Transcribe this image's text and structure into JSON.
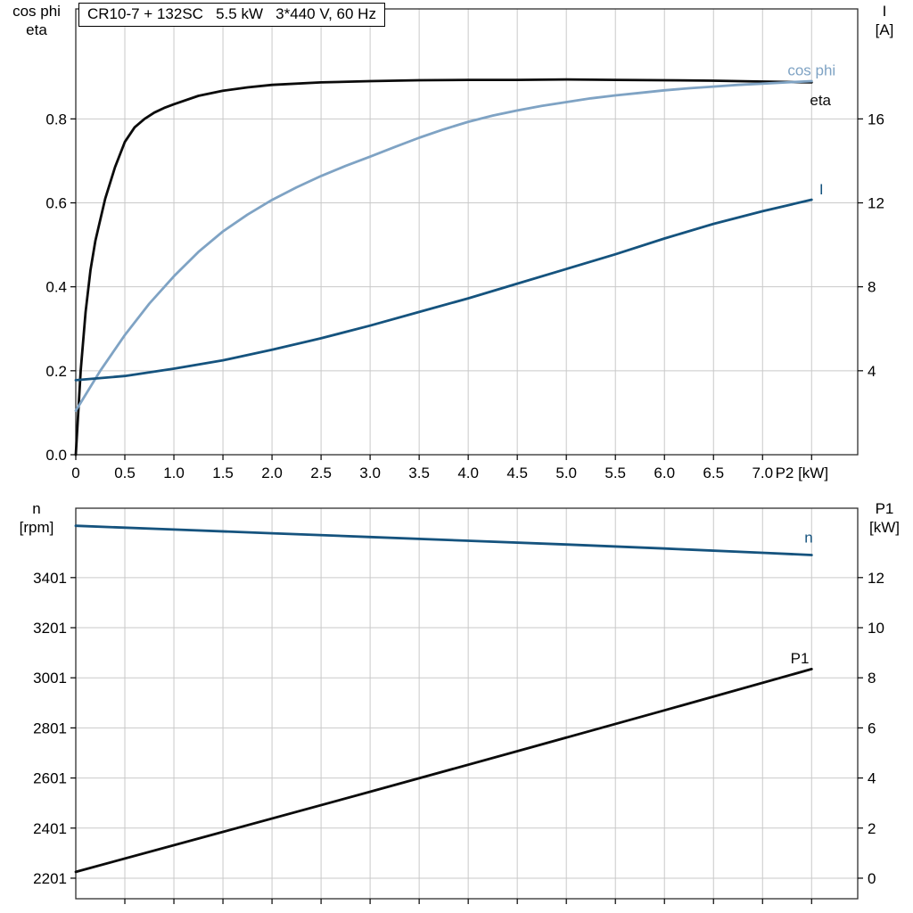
{
  "title": "CR10-7 + 132SC   5.5 kW   3*440 V, 60 Hz",
  "colors": {
    "black": "#0b0b0b",
    "dark_blue": "#15537e",
    "light_blue": "#7fa3c4",
    "grid": "#c9c9c9",
    "frame": "#2e2e2e",
    "text": "#000000"
  },
  "chart_data": [
    {
      "type": "line",
      "id": "top",
      "x_axis": {
        "range": [
          0,
          7.97
        ],
        "ticks": [
          0,
          0.5,
          1,
          1.5,
          2,
          2.5,
          3,
          3.5,
          4,
          4.5,
          5,
          5.5,
          6,
          6.5,
          7
        ],
        "tick_labels": [
          "0",
          "0.5",
          "1.0",
          "1.5",
          "2.0",
          "2.5",
          "3.0",
          "3.5",
          "4.0",
          "4.5",
          "5.0",
          "5.5",
          "6.0",
          "6.5",
          "7.0"
        ],
        "grid_ticks": [
          0.5,
          1,
          1.5,
          2,
          2.5,
          3,
          3.5,
          4,
          4.5,
          5,
          5.5,
          6,
          6.5,
          7,
          7.5
        ],
        "end_label": "P2 [kW]",
        "end_label_x": 7.13
      },
      "left_axis": {
        "label_lines": [
          "cos phi",
          "eta"
        ],
        "range": [
          0,
          1.062
        ],
        "ticks": [
          0,
          0.2,
          0.4,
          0.6,
          0.8
        ],
        "tick_labels": [
          "0.0",
          "0.2",
          "0.4",
          "0.6",
          "0.8"
        ]
      },
      "right_axis": {
        "label_lines": [
          "I",
          "[A]"
        ],
        "range": [
          0,
          21.24
        ],
        "ticks": [
          4,
          8,
          12,
          16
        ],
        "tick_labels": [
          "4",
          "8",
          "12",
          "16"
        ]
      },
      "series": [
        {
          "name": "eta",
          "label": "eta",
          "axis": "left",
          "color_key": "black",
          "label_at": [
            7.59,
            0.845
          ],
          "x": [
            0,
            0.05,
            0.1,
            0.15,
            0.2,
            0.3,
            0.4,
            0.5,
            0.6,
            0.7,
            0.8,
            0.9,
            1.0,
            1.25,
            1.5,
            1.75,
            2.0,
            2.5,
            3.0,
            3.5,
            4.0,
            4.5,
            5.0,
            5.5,
            6.0,
            6.5,
            7.0,
            7.5
          ],
          "y": [
            0,
            0.2,
            0.34,
            0.44,
            0.51,
            0.61,
            0.685,
            0.745,
            0.78,
            0.8,
            0.815,
            0.826,
            0.835,
            0.855,
            0.867,
            0.875,
            0.881,
            0.887,
            0.89,
            0.892,
            0.893,
            0.893,
            0.894,
            0.893,
            0.892,
            0.891,
            0.889,
            0.887
          ]
        },
        {
          "name": "cos-phi",
          "label": "cos phi",
          "axis": "left",
          "color_key": "light_blue",
          "label_at": [
            7.5,
            0.916
          ],
          "x": [
            0,
            0.25,
            0.5,
            0.75,
            1.0,
            1.25,
            1.5,
            1.75,
            2.0,
            2.25,
            2.5,
            2.75,
            3.0,
            3.25,
            3.5,
            3.75,
            4.0,
            4.25,
            4.5,
            4.75,
            5.0,
            5.25,
            5.5,
            5.75,
            6.0,
            6.25,
            6.5,
            6.75,
            7.0,
            7.25,
            7.5
          ],
          "y": [
            0.105,
            0.2,
            0.285,
            0.36,
            0.425,
            0.483,
            0.532,
            0.572,
            0.607,
            0.637,
            0.664,
            0.688,
            0.71,
            0.733,
            0.755,
            0.775,
            0.793,
            0.808,
            0.82,
            0.831,
            0.84,
            0.849,
            0.856,
            0.862,
            0.868,
            0.873,
            0.877,
            0.881,
            0.884,
            0.887,
            0.89
          ]
        },
        {
          "name": "current",
          "label": "I",
          "axis": "right",
          "color_key": "dark_blue",
          "label_at": [
            7.6,
            12.66
          ],
          "x": [
            0,
            0.5,
            1.0,
            1.5,
            2.0,
            2.5,
            3.0,
            3.5,
            4.0,
            4.5,
            5.0,
            5.5,
            6.0,
            6.5,
            7.0,
            7.5
          ],
          "y": [
            3.55,
            3.75,
            4.1,
            4.5,
            5.0,
            5.55,
            6.15,
            6.8,
            7.45,
            8.15,
            8.85,
            9.55,
            10.3,
            11.0,
            11.6,
            12.15
          ]
        }
      ]
    },
    {
      "type": "line",
      "id": "bottom",
      "x_axis": {
        "range": [
          0,
          7.97
        ],
        "ticks": [],
        "tick_labels": [],
        "grid_ticks": [
          0.5,
          1,
          1.5,
          2,
          2.5,
          3,
          3.5,
          4,
          4.5,
          5,
          5.5,
          6,
          6.5,
          7,
          7.5
        ],
        "end_label": "",
        "end_label_x": 0
      },
      "left_axis": {
        "label_lines": [
          "n",
          "[rpm]"
        ],
        "range": [
          2119,
          3678
        ],
        "ticks": [
          2201,
          2401,
          2601,
          2801,
          3001,
          3201,
          3401
        ],
        "tick_labels": [
          "2201",
          "2401",
          "2601",
          "2801",
          "3001",
          "3201",
          "3401"
        ]
      },
      "right_axis": {
        "label_lines": [
          "P1",
          "[kW]"
        ],
        "range": [
          -0.82,
          14.77
        ],
        "ticks": [
          0,
          2,
          4,
          6,
          8,
          10,
          12
        ],
        "tick_labels": [
          "0",
          "2",
          "4",
          "6",
          "8",
          "10",
          "12"
        ]
      },
      "series": [
        {
          "name": "p1",
          "label": "P1",
          "axis": "right",
          "color_key": "black",
          "label_at": [
            7.38,
            8.79
          ],
          "x": [
            0,
            1.5,
            3,
            4.5,
            6,
            7.5
          ],
          "y": [
            0.25,
            1.85,
            3.45,
            5.07,
            6.7,
            8.35
          ]
        },
        {
          "name": "speed",
          "label": "n",
          "axis": "left",
          "color_key": "dark_blue",
          "label_at": [
            7.47,
            3562
          ],
          "x": [
            0,
            1,
            2,
            3,
            4,
            5,
            6,
            7,
            7.5
          ],
          "y": [
            3608,
            3593,
            3578,
            3563,
            3548,
            3533,
            3517,
            3500,
            3491
          ]
        }
      ]
    }
  ]
}
